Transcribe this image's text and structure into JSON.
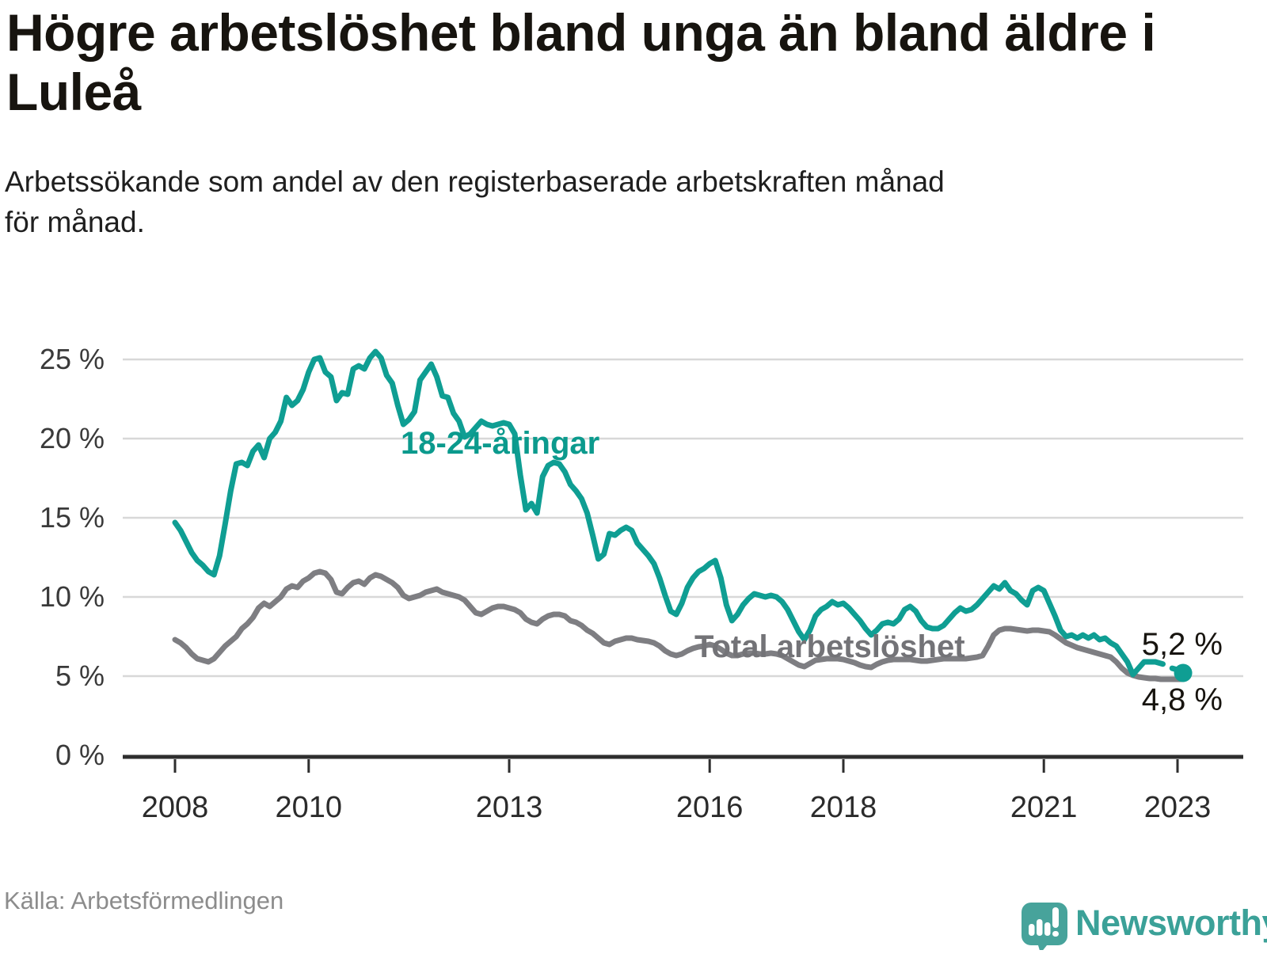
{
  "header": {
    "title": "Högre arbetslöshet bland unga än bland äldre i Luleå",
    "title_line1": "Högre arbetslöshet bland unga än bland äldre i",
    "title_line2": "Luleå",
    "subtitle_line1": "Arbetssökande som andel av den registerbaserade arbetskraften månad",
    "subtitle_line2": "för månad."
  },
  "footer": {
    "source": "Källa: Arbetsförmedlingen",
    "logo_text": "Newsworthy"
  },
  "colors": {
    "youth": "#0f9e93",
    "youth_label": "#0b9a8d",
    "total": "#7e7e82",
    "total_label": "#737377",
    "grid": "#d8d8d8",
    "axis": "#2e2e2e",
    "end_dot": "#0f9e93"
  },
  "chart_data": {
    "type": "line",
    "title": "Högre arbetslöshet bland unga än bland äldre i Luleå",
    "xlabel": "",
    "ylabel": "Arbetssökande som andel av den registerbaserade arbetskraften",
    "unit": "%",
    "x_start": "2008-01",
    "x_end": "2023-02",
    "x_frequency": "monthly",
    "ylim": [
      0,
      26.5
    ],
    "grid": true,
    "y_axis": {
      "grid_values": [
        5,
        10,
        15,
        20,
        25
      ],
      "tick_values": [
        0,
        5,
        10,
        15,
        20,
        25
      ],
      "tick_labels": [
        "0 %",
        "5 %",
        "10 %",
        "15 %",
        "20 %",
        "25 %"
      ]
    },
    "x_axis": {
      "ticks": [
        {
          "label": "2008",
          "year": 2008
        },
        {
          "label": "2010",
          "year": 2010
        },
        {
          "label": "2013",
          "year": 2013
        },
        {
          "label": "2016",
          "year": 2016
        },
        {
          "label": "2018",
          "year": 2018
        },
        {
          "label": "2021",
          "year": 2021
        },
        {
          "label": "2023",
          "year": 2023
        }
      ]
    },
    "annotations": {
      "youth_series_label": "18-24-åringar",
      "total_series_label": "Total arbetslöshet",
      "youth_end_label": "5,2 %",
      "total_end_label": "4,8 %"
    },
    "series": [
      {
        "name": "18-24-åringar",
        "color": "#0f9e93",
        "dashed_from_index": 176,
        "end_dot": true,
        "values": [
          14.7,
          14.2,
          13.5,
          12.8,
          12.3,
          12.0,
          11.6,
          11.4,
          12.6,
          14.6,
          16.7,
          18.4,
          18.5,
          18.3,
          19.2,
          19.6,
          18.8,
          20.0,
          20.4,
          21.1,
          22.6,
          22.1,
          22.4,
          23.1,
          24.2,
          25.0,
          25.1,
          24.2,
          23.9,
          22.4,
          22.9,
          22.8,
          24.4,
          24.6,
          24.4,
          25.1,
          25.5,
          25.1,
          24.0,
          23.5,
          22.1,
          20.9,
          21.2,
          21.7,
          23.7,
          24.2,
          24.7,
          23.9,
          22.7,
          22.6,
          21.6,
          21.1,
          20.1,
          20.3,
          20.7,
          21.1,
          20.9,
          20.8,
          20.9,
          21.0,
          20.9,
          20.3,
          17.7,
          15.5,
          15.9,
          15.3,
          17.6,
          18.3,
          18.5,
          18.4,
          17.9,
          17.1,
          16.7,
          16.2,
          15.3,
          13.9,
          12.4,
          12.7,
          14.0,
          13.9,
          14.2,
          14.4,
          14.2,
          13.4,
          13.0,
          12.6,
          12.1,
          11.2,
          10.1,
          9.1,
          8.9,
          9.6,
          10.6,
          11.2,
          11.6,
          11.8,
          12.1,
          12.3,
          11.2,
          9.5,
          8.5,
          8.9,
          9.5,
          9.9,
          10.2,
          10.1,
          10.0,
          10.1,
          10.0,
          9.7,
          9.2,
          8.5,
          7.8,
          7.3,
          7.9,
          8.8,
          9.2,
          9.4,
          9.7,
          9.5,
          9.6,
          9.3,
          8.9,
          8.5,
          8.0,
          7.6,
          7.9,
          8.3,
          8.4,
          8.3,
          8.6,
          9.2,
          9.4,
          9.1,
          8.5,
          8.1,
          8.0,
          8.0,
          8.2,
          8.6,
          9.0,
          9.3,
          9.1,
          9.2,
          9.5,
          9.9,
          10.3,
          10.7,
          10.5,
          10.9,
          10.4,
          10.2,
          9.8,
          9.5,
          10.4,
          10.6,
          10.4,
          9.6,
          8.8,
          7.9,
          7.5,
          7.6,
          7.4,
          7.6,
          7.4,
          7.6,
          7.3,
          7.4,
          7.1,
          6.9,
          6.4,
          5.9,
          5.1,
          5.5,
          5.9,
          5.9,
          5.9,
          5.8,
          5.7,
          5.5,
          5.4,
          5.2
        ]
      },
      {
        "name": "Total arbetslöshet",
        "color": "#7e7e82",
        "dashed_from_index": null,
        "end_dot": false,
        "values": [
          7.3,
          7.1,
          6.8,
          6.4,
          6.1,
          6.0,
          5.9,
          6.1,
          6.5,
          6.9,
          7.2,
          7.5,
          8.0,
          8.3,
          8.7,
          9.3,
          9.6,
          9.4,
          9.7,
          10.0,
          10.5,
          10.7,
          10.6,
          11.0,
          11.2,
          11.5,
          11.6,
          11.5,
          11.1,
          10.3,
          10.2,
          10.6,
          10.9,
          11.0,
          10.8,
          11.2,
          11.4,
          11.3,
          11.1,
          10.9,
          10.6,
          10.1,
          9.9,
          10.0,
          10.1,
          10.3,
          10.4,
          10.5,
          10.3,
          10.2,
          10.1,
          10.0,
          9.8,
          9.4,
          9.0,
          8.9,
          9.1,
          9.3,
          9.4,
          9.4,
          9.3,
          9.2,
          9.0,
          8.6,
          8.4,
          8.3,
          8.6,
          8.8,
          8.9,
          8.9,
          8.8,
          8.5,
          8.4,
          8.2,
          7.9,
          7.7,
          7.4,
          7.1,
          7.0,
          7.2,
          7.3,
          7.4,
          7.4,
          7.3,
          7.25,
          7.2,
          7.1,
          6.9,
          6.6,
          6.4,
          6.3,
          6.4,
          6.6,
          6.75,
          6.85,
          6.9,
          7.0,
          6.9,
          6.7,
          6.45,
          6.3,
          6.3,
          6.4,
          6.45,
          6.45,
          6.4,
          6.4,
          6.45,
          6.4,
          6.3,
          6.1,
          5.9,
          5.7,
          5.6,
          5.8,
          6.0,
          6.05,
          6.1,
          6.1,
          6.1,
          6.05,
          5.95,
          5.85,
          5.7,
          5.6,
          5.55,
          5.75,
          5.9,
          6.0,
          6.05,
          6.05,
          6.05,
          6.05,
          6.0,
          5.95,
          5.95,
          6.0,
          6.05,
          6.1,
          6.1,
          6.1,
          6.1,
          6.1,
          6.15,
          6.2,
          6.3,
          6.9,
          7.6,
          7.9,
          8.0,
          8.0,
          7.95,
          7.9,
          7.85,
          7.9,
          7.9,
          7.85,
          7.8,
          7.6,
          7.35,
          7.1,
          6.95,
          6.8,
          6.7,
          6.6,
          6.5,
          6.4,
          6.3,
          6.2,
          5.9,
          5.5,
          5.2,
          5.05,
          4.95,
          4.9,
          4.85,
          4.85,
          4.8,
          4.8,
          4.8,
          4.8,
          4.8
        ]
      }
    ],
    "legend_position": "inline-labels"
  }
}
